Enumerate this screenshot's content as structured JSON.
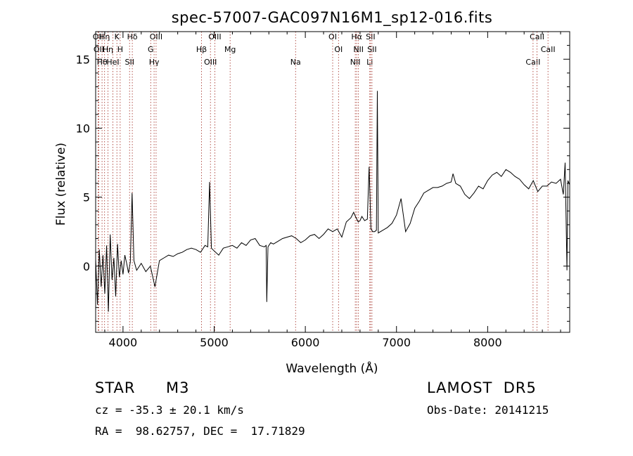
{
  "chart_data": {
    "type": "line",
    "title": "spec-57007-GAC097N16M1_sp12-016.fits",
    "xlabel": "Wavelength (Å)",
    "ylabel": "Flux (relative)",
    "xlim": [
      3700,
      8900
    ],
    "ylim": [
      -4.8,
      17
    ],
    "xticks": [
      4000,
      5000,
      6000,
      7000,
      8000
    ],
    "yticks": [
      0,
      5,
      10,
      15
    ],
    "grid": false,
    "series": [
      {
        "x": [
          3700,
          3720,
          3740,
          3760,
          3780,
          3800,
          3820,
          3840,
          3860,
          3880,
          3900,
          3920,
          3940,
          3960,
          3980,
          4000,
          4020,
          4040,
          4060,
          4080,
          4100,
          4120,
          4150,
          4200,
          4250,
          4300,
          4350,
          4400,
          4450,
          4500,
          4550,
          4600,
          4650,
          4700,
          4750,
          4800,
          4850,
          4900,
          4930,
          4950,
          4970,
          5000,
          5050,
          5100,
          5150,
          5200,
          5250,
          5300,
          5350,
          5400,
          5450,
          5500,
          5550,
          5570,
          5577,
          5590,
          5620,
          5650,
          5700,
          5750,
          5800,
          5850,
          5900,
          5950,
          6000,
          6050,
          6100,
          6150,
          6200,
          6250,
          6300,
          6350,
          6400,
          6450,
          6500,
          6530,
          6550,
          6580,
          6600,
          6620,
          6650,
          6680,
          6700,
          6720,
          6740,
          6760,
          6780,
          6790,
          6800,
          6850,
          6900,
          6950,
          7000,
          7050,
          7100,
          7150,
          7200,
          7250,
          7300,
          7350,
          7400,
          7450,
          7500,
          7550,
          7600,
          7620,
          7650,
          7700,
          7750,
          7800,
          7850,
          7900,
          7950,
          8000,
          8050,
          8100,
          8150,
          8200,
          8250,
          8300,
          8350,
          8400,
          8450,
          8500,
          8550,
          8600,
          8650,
          8700,
          8750,
          8800,
          8830,
          8850,
          8870,
          8880,
          8900
        ],
        "y": [
          0.5,
          -2.8,
          1.2,
          -1.5,
          0.8,
          -2.0,
          1.5,
          -3.3,
          2.3,
          -1.0,
          0.6,
          -2.2,
          1.6,
          -0.8,
          0.4,
          -0.6,
          0.8,
          0.2,
          -0.5,
          0.3,
          5.3,
          0.4,
          -0.3,
          0.2,
          -0.4,
          0.0,
          -1.5,
          0.4,
          0.6,
          0.8,
          0.7,
          0.9,
          1.0,
          1.2,
          1.3,
          1.2,
          1.0,
          1.5,
          1.4,
          6.1,
          1.3,
          1.1,
          0.8,
          1.3,
          1.4,
          1.5,
          1.3,
          1.7,
          1.5,
          1.9,
          2.0,
          1.5,
          1.4,
          1.5,
          -2.6,
          1.4,
          1.7,
          1.6,
          1.8,
          2.0,
          2.1,
          2.2,
          2.0,
          1.7,
          1.9,
          2.2,
          2.3,
          2.0,
          2.3,
          2.7,
          2.5,
          2.7,
          2.1,
          3.2,
          3.5,
          3.9,
          3.6,
          3.2,
          3.3,
          3.6,
          3.3,
          3.4,
          7.2,
          2.7,
          2.5,
          2.5,
          2.6,
          12.7,
          2.4,
          2.6,
          2.8,
          3.1,
          3.7,
          4.9,
          2.5,
          3.1,
          4.2,
          4.7,
          5.3,
          5.5,
          5.7,
          5.7,
          5.8,
          6.0,
          6.1,
          6.7,
          6.0,
          5.8,
          5.2,
          4.9,
          5.3,
          5.8,
          5.6,
          6.2,
          6.6,
          6.8,
          6.5,
          7.0,
          6.8,
          6.5,
          6.3,
          5.9,
          5.6,
          6.2,
          5.4,
          5.8,
          5.8,
          6.1,
          6.0,
          6.3,
          5.2,
          7.5,
          -0.3,
          6.2,
          5.9
        ]
      }
    ],
    "line_ids": [
      {
        "wl": 3726,
        "label": "OII"
      },
      {
        "wl": 3734,
        "label": "OII"
      },
      {
        "wl": 3770,
        "label": "Hθ"
      },
      {
        "wl": 3798,
        "label": "Hη"
      },
      {
        "wl": 3835,
        "label": "Hη"
      },
      {
        "wl": 3889,
        "label": "HeI"
      },
      {
        "wl": 3933,
        "label": "K"
      },
      {
        "wl": 3969,
        "label": "H"
      },
      {
        "wl": 4072,
        "label": "SII"
      },
      {
        "wl": 4102,
        "label": "Hδ"
      },
      {
        "wl": 4304,
        "label": "G"
      },
      {
        "wl": 4341,
        "label": "Hγ"
      },
      {
        "wl": 4363,
        "label": "OIII"
      },
      {
        "wl": 4861,
        "label": "Hβ"
      },
      {
        "wl": 4959,
        "label": "OIII"
      },
      {
        "wl": 5007,
        "label": "OIII"
      },
      {
        "wl": 5175,
        "label": "Mg"
      },
      {
        "wl": 5893,
        "label": "Na"
      },
      {
        "wl": 6300,
        "label": "OI"
      },
      {
        "wl": 6364,
        "label": "OI"
      },
      {
        "wl": 6548,
        "label": "NII"
      },
      {
        "wl": 6563,
        "label": "Hα"
      },
      {
        "wl": 6583,
        "label": "NII"
      },
      {
        "wl": 6707,
        "label": "Li"
      },
      {
        "wl": 6716,
        "label": "SII"
      },
      {
        "wl": 6731,
        "label": "SII"
      },
      {
        "wl": 8498,
        "label": "CaII"
      },
      {
        "wl": 8542,
        "label": "CaII"
      },
      {
        "wl": 8662,
        "label": "CaII"
      }
    ]
  },
  "info": {
    "object_class": "STAR",
    "subclass": "M3",
    "survey": "LAMOST  DR5",
    "cz": "cz = -35.3 ± 20.1 km/s",
    "obs_date": "Obs-Date: 20141215",
    "coords": "RA =  98.62757, DEC =  17.71829"
  }
}
